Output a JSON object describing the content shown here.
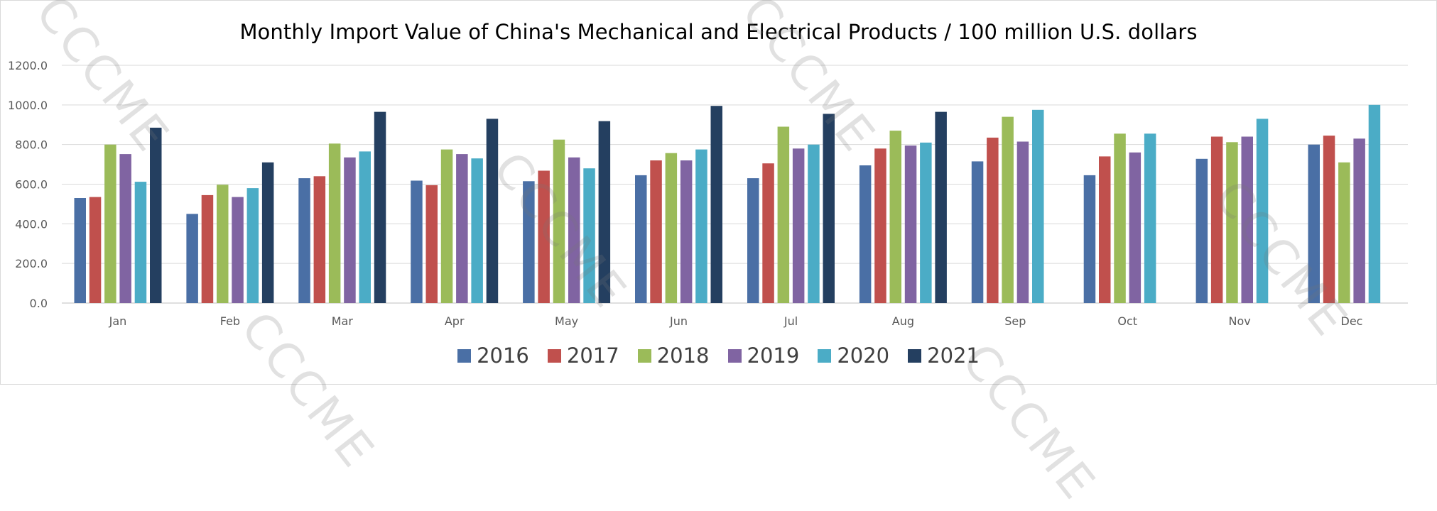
{
  "watermark_text": "CCCME",
  "chart_data": {
    "type": "bar",
    "title": "Monthly Import Value of China's Mechanical and Electrical Products / 100 million U.S. dollars",
    "xlabel": "",
    "ylabel": "",
    "ylim": [
      0,
      1200
    ],
    "yticks": [
      "0.0",
      "200.0",
      "400.0",
      "600.0",
      "800.0",
      "1000.0",
      "1200.0"
    ],
    "grid": true,
    "legend_position": "bottom",
    "categories": [
      "Jan",
      "Feb",
      "Mar",
      "Apr",
      "May",
      "Jun",
      "Jul",
      "Aug",
      "Sep",
      "Oct",
      "Nov",
      "Dec"
    ],
    "series": [
      {
        "name": "2016",
        "color": "#4a6fa5",
        "values": [
          530,
          450,
          630,
          618,
          615,
          645,
          630,
          695,
          715,
          645,
          728,
          800
        ]
      },
      {
        "name": "2017",
        "color": "#c0504d",
        "values": [
          535,
          545,
          640,
          595,
          668,
          720,
          705,
          780,
          835,
          740,
          840,
          845
        ]
      },
      {
        "name": "2018",
        "color": "#9bbb59",
        "values": [
          800,
          597,
          805,
          775,
          825,
          757,
          890,
          870,
          940,
          855,
          812,
          710
        ]
      },
      {
        "name": "2019",
        "color": "#8064a2",
        "values": [
          752,
          535,
          735,
          752,
          735,
          720,
          780,
          795,
          815,
          760,
          840,
          830
        ]
      },
      {
        "name": "2020",
        "color": "#4bacc6",
        "values": [
          612,
          580,
          765,
          730,
          680,
          775,
          800,
          810,
          975,
          855,
          930,
          1000
        ]
      },
      {
        "name": "2021",
        "color": "#243f60",
        "values": [
          885,
          710,
          965,
          930,
          918,
          995,
          955,
          965,
          null,
          null,
          null,
          null
        ]
      }
    ]
  }
}
